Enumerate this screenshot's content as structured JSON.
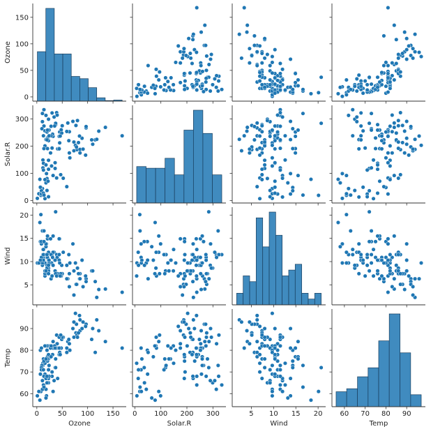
{
  "chart_data": {
    "type": "pairplot",
    "color": "#1f77b4",
    "variables": [
      {
        "name": "Ozone",
        "lim": [
          -8,
          176
        ],
        "ticks": [
          0,
          50,
          100,
          150
        ],
        "bins": [
          1,
          17.7,
          34.4,
          51.1,
          67.8,
          84.5,
          101.2,
          117.9,
          134.6,
          151.3,
          168
        ],
        "counts": [
          88,
          165,
          84,
          84,
          44,
          40,
          24,
          6,
          1,
          2
        ]
      },
      {
        "name": "Solar.R",
        "lim": [
          -9,
          350
        ],
        "ticks": [
          0,
          100,
          200,
          300
        ],
        "bins": [
          7,
          43.3,
          79.7,
          116,
          152.3,
          188.7,
          225,
          261.3,
          297.7,
          334
        ],
        "counts": [
          22,
          21,
          21,
          27,
          17,
          44,
          56,
          42,
          17
        ]
      },
      {
        "name": "Wind",
        "lim": [
          0.7,
          21.7
        ],
        "ticks": [
          5,
          10,
          15,
          20
        ],
        "bins": [
          1.7,
          3.16,
          4.62,
          6.08,
          7.55,
          9.01,
          10.47,
          11.93,
          13.39,
          14.85,
          16.32,
          17.78,
          19.24,
          20.7
        ],
        "counts": [
          2,
          5,
          4,
          15,
          10,
          16,
          12,
          5,
          6,
          7,
          2,
          1,
          2
        ]
      },
      {
        "name": "Temp",
        "lim": [
          54,
          99
        ],
        "ticks": [
          60,
          70,
          80,
          90
        ],
        "bins": [
          56,
          61.1,
          66.3,
          71.4,
          76.5,
          81.6,
          86.8,
          91.9,
          97
        ],
        "counts": [
          5,
          6,
          10,
          13,
          22,
          31,
          18,
          4
        ]
      }
    ],
    "rows": [
      [
        41,
        190,
        7.4,
        67
      ],
      [
        36,
        118,
        8.0,
        72
      ],
      [
        12,
        149,
        12.6,
        74
      ],
      [
        18,
        313,
        11.5,
        62
      ],
      [
        23,
        299,
        8.6,
        65
      ],
      [
        19,
        99,
        13.8,
        59
      ],
      [
        8,
        19,
        20.1,
        61
      ],
      [
        16,
        256,
        9.7,
        69
      ],
      [
        11,
        290,
        9.2,
        66
      ],
      [
        14,
        274,
        10.9,
        68
      ],
      [
        18,
        65,
        13.2,
        58
      ],
      [
        14,
        334,
        11.5,
        64
      ],
      [
        34,
        307,
        12.0,
        66
      ],
      [
        6,
        78,
        18.4,
        57
      ],
      [
        30,
        322,
        11.5,
        68
      ],
      [
        11,
        44,
        9.7,
        62
      ],
      [
        1,
        8,
        9.7,
        59
      ],
      [
        11,
        320,
        16.6,
        73
      ],
      [
        4,
        25,
        9.7,
        61
      ],
      [
        32,
        92,
        12.0,
        61
      ],
      [
        23,
        13,
        12.0,
        67
      ],
      [
        45,
        252,
        14.9,
        81
      ],
      [
        115,
        223,
        5.7,
        79
      ],
      [
        37,
        279,
        7.4,
        76
      ],
      [
        29,
        127,
        9.7,
        82
      ],
      [
        71,
        291,
        13.8,
        90
      ],
      [
        39,
        323,
        11.5,
        87
      ],
      [
        23,
        148,
        8.0,
        82
      ],
      [
        21,
        191,
        14.9,
        77
      ],
      [
        37,
        284,
        20.7,
        72
      ],
      [
        20,
        37,
        9.2,
        65
      ],
      [
        12,
        120,
        11.5,
        73
      ],
      [
        13,
        137,
        10.3,
        76
      ],
      [
        135,
        269,
        4.1,
        84
      ],
      [
        49,
        248,
        9.2,
        85
      ],
      [
        32,
        236,
        9.2,
        81
      ],
      [
        64,
        175,
        4.6,
        83
      ],
      [
        40,
        314,
        10.9,
        83
      ],
      [
        77,
        276,
        5.1,
        88
      ],
      [
        97,
        267,
        6.3,
        92
      ],
      [
        97,
        272,
        5.7,
        92
      ],
      [
        85,
        175,
        7.4,
        89
      ],
      [
        10,
        264,
        14.3,
        73
      ],
      [
        27,
        175,
        14.9,
        81
      ],
      [
        7,
        48,
        14.3,
        80
      ],
      [
        48,
        260,
        6.9,
        81
      ],
      [
        35,
        274,
        10.3,
        82
      ],
      [
        61,
        285,
        6.3,
        84
      ],
      [
        79,
        187,
        5.1,
        87
      ],
      [
        63,
        220,
        11.5,
        85
      ],
      [
        16,
        7,
        6.9,
        74
      ],
      [
        80,
        294,
        8.6,
        86
      ],
      [
        108,
        223,
        8.0,
        85
      ],
      [
        20,
        81,
        8.6,
        82
      ],
      [
        52,
        82,
        12.0,
        86
      ],
      [
        82,
        213,
        7.4,
        88
      ],
      [
        50,
        275,
        7.4,
        86
      ],
      [
        64,
        253,
        7.4,
        83
      ],
      [
        59,
        254,
        9.2,
        81
      ],
      [
        39,
        83,
        6.9,
        81
      ],
      [
        9,
        24,
        13.8,
        81
      ],
      [
        16,
        77,
        7.4,
        82
      ],
      [
        122,
        255,
        4.0,
        89
      ],
      [
        89,
        229,
        10.3,
        90
      ],
      [
        110,
        207,
        8.0,
        90
      ],
      [
        44,
        192,
        11.5,
        86
      ],
      [
        28,
        273,
        11.5,
        82
      ],
      [
        65,
        157,
        9.7,
        80
      ],
      [
        22,
        71,
        10.3,
        77
      ],
      [
        59,
        51,
        6.3,
        79
      ],
      [
        23,
        115,
        7.4,
        76
      ],
      [
        31,
        244,
        10.9,
        78
      ],
      [
        44,
        190,
        10.3,
        78
      ],
      [
        21,
        259,
        15.5,
        77
      ],
      [
        9,
        36,
        14.3,
        72
      ],
      [
        45,
        212,
        9.7,
        79
      ],
      [
        168,
        238,
        3.4,
        81
      ],
      [
        73,
        215,
        8.0,
        86
      ],
      [
        76,
        203,
        9.7,
        97
      ],
      [
        118,
        225,
        2.3,
        94
      ],
      [
        84,
        237,
        6.3,
        96
      ],
      [
        85,
        188,
        6.3,
        94
      ],
      [
        96,
        167,
        6.9,
        91
      ],
      [
        78,
        197,
        5.1,
        92
      ],
      [
        73,
        183,
        2.8,
        93
      ],
      [
        91,
        189,
        4.6,
        93
      ],
      [
        47,
        95,
        7.4,
        87
      ],
      [
        32,
        92,
        15.5,
        84
      ],
      [
        20,
        252,
        10.9,
        80
      ],
      [
        23,
        220,
        10.3,
        78
      ],
      [
        21,
        230,
        10.9,
        75
      ],
      [
        24,
        259,
        9.7,
        73
      ],
      [
        44,
        236,
        14.9,
        81
      ],
      [
        21,
        259,
        15.5,
        76
      ],
      [
        28,
        238,
        6.3,
        77
      ],
      [
        9,
        24,
        10.9,
        71
      ],
      [
        13,
        112,
        11.5,
        71
      ],
      [
        46,
        237,
        6.9,
        78
      ],
      [
        18,
        224,
        13.8,
        67
      ],
      [
        13,
        27,
        10.3,
        76
      ],
      [
        24,
        238,
        10.3,
        68
      ],
      [
        16,
        201,
        8.0,
        82
      ],
      [
        13,
        238,
        12.6,
        64
      ],
      [
        23,
        14,
        9.2,
        71
      ],
      [
        36,
        139,
        10.3,
        81
      ],
      [
        7,
        49,
        10.3,
        69
      ],
      [
        14,
        20,
        16.6,
        63
      ],
      [
        30,
        193,
        6.9,
        70
      ],
      [
        14,
        191,
        14.3,
        75
      ],
      [
        18,
        131,
        8.0,
        76
      ],
      [
        20,
        223,
        11.5,
        68
      ]
    ]
  }
}
